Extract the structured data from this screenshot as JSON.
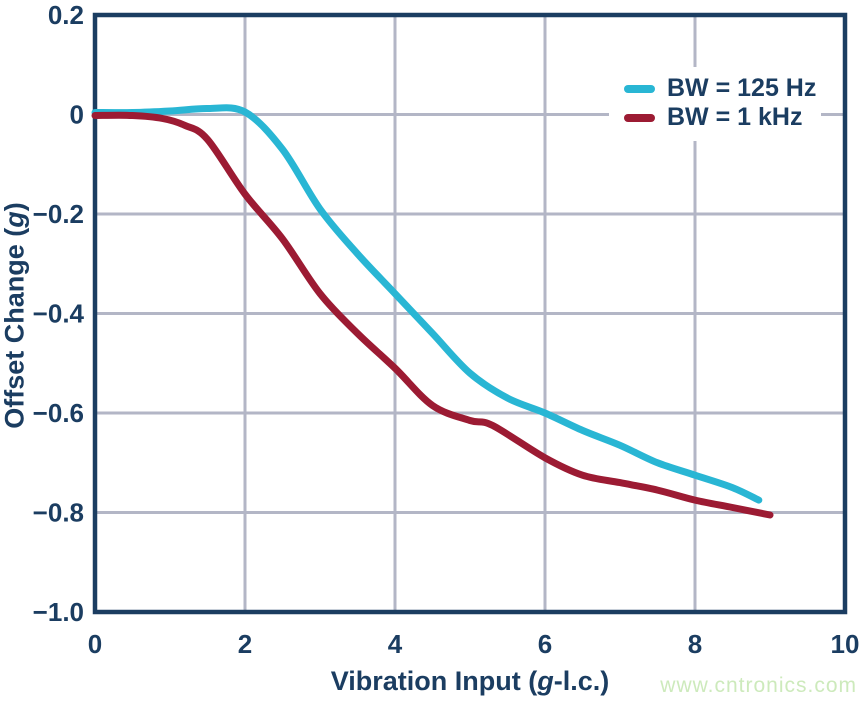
{
  "chart_data": {
    "type": "line",
    "title": "",
    "xlabel_parts": {
      "prefix": "Vibration Input (",
      "italic": "g",
      "suffix": "-l.c.)"
    },
    "ylabel_parts": {
      "prefix": "Offset Change (",
      "italic": "g",
      "suffix": ")"
    },
    "xlim": [
      0,
      10
    ],
    "ylim": [
      -1.0,
      0.2
    ],
    "grid": true,
    "legend_position": "top-right",
    "x_ticks": [
      {
        "value": 0,
        "label": "0"
      },
      {
        "value": 2,
        "label": "2"
      },
      {
        "value": 4,
        "label": "4"
      },
      {
        "value": 6,
        "label": "6"
      },
      {
        "value": 8,
        "label": "8"
      },
      {
        "value": 10,
        "label": "10"
      }
    ],
    "y_ticks": [
      {
        "value": 0.2,
        "label": "0.2"
      },
      {
        "value": 0,
        "label": "0"
      },
      {
        "value": -0.2,
        "label": "−0.2"
      },
      {
        "value": -0.4,
        "label": "−0.4"
      },
      {
        "value": -0.6,
        "label": "−0.6"
      },
      {
        "value": -0.8,
        "label": "−0.8"
      },
      {
        "value": -1.0,
        "label": "−1.0"
      }
    ],
    "series": [
      {
        "name": "BW = 125 Hz",
        "color": "#29b6d4",
        "points": [
          [
            0,
            0.004
          ],
          [
            0.5,
            0.004
          ],
          [
            1.0,
            0.007
          ],
          [
            1.5,
            0.012
          ],
          [
            2.0,
            0.005
          ],
          [
            2.5,
            -0.07
          ],
          [
            3.0,
            -0.19
          ],
          [
            3.5,
            -0.28
          ],
          [
            4.0,
            -0.36
          ],
          [
            4.5,
            -0.44
          ],
          [
            5.0,
            -0.52
          ],
          [
            5.5,
            -0.57
          ],
          [
            6.0,
            -0.6
          ],
          [
            6.5,
            -0.635
          ],
          [
            7.0,
            -0.665
          ],
          [
            7.5,
            -0.7
          ],
          [
            8.0,
            -0.725
          ],
          [
            8.5,
            -0.75
          ],
          [
            8.85,
            -0.775
          ]
        ]
      },
      {
        "name": "BW = 1 kHz",
        "color": "#9c1b33",
        "points": [
          [
            0,
            -0.002
          ],
          [
            0.5,
            -0.002
          ],
          [
            0.9,
            -0.008
          ],
          [
            1.2,
            -0.022
          ],
          [
            1.5,
            -0.05
          ],
          [
            2.0,
            -0.16
          ],
          [
            2.5,
            -0.25
          ],
          [
            3.0,
            -0.36
          ],
          [
            3.5,
            -0.44
          ],
          [
            4.0,
            -0.51
          ],
          [
            4.5,
            -0.585
          ],
          [
            5.0,
            -0.615
          ],
          [
            5.3,
            -0.625
          ],
          [
            6.0,
            -0.69
          ],
          [
            6.5,
            -0.725
          ],
          [
            7.0,
            -0.74
          ],
          [
            7.5,
            -0.755
          ],
          [
            8.0,
            -0.775
          ],
          [
            8.5,
            -0.79
          ],
          [
            9.0,
            -0.805
          ]
        ]
      }
    ]
  },
  "colors": {
    "frame": "#1b3d61",
    "grid": "#b3b6c6",
    "text": "#1b3d61",
    "background": "#ffffff"
  },
  "watermark": {
    "text": "www.cntronics.com",
    "color": "#cdeabc"
  }
}
